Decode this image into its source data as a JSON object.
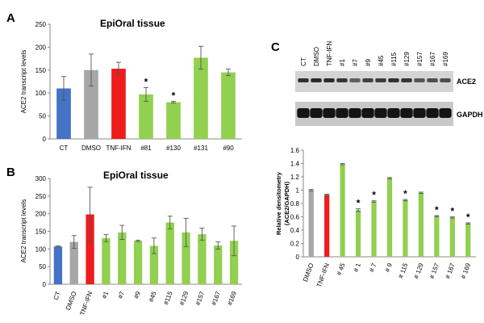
{
  "panels": {
    "a": {
      "letter": "A",
      "title": "EpiOral tissue"
    },
    "b": {
      "letter": "B",
      "title": "EpiOral tissue"
    },
    "c": {
      "letter": "C"
    }
  },
  "blot": {
    "lanes": [
      "CT",
      "DMSO",
      "TNF-IFN",
      "#1",
      "#7",
      "#9",
      "#45",
      "#115",
      "#129",
      "#157",
      "#167",
      "#169"
    ],
    "bands": [
      "ACE2",
      "GAPDH"
    ]
  },
  "colors": {
    "blue": "#4472c4",
    "gray": "#a6a6a6",
    "red": "#ee1c1c",
    "green": "#92d050"
  },
  "chart_data": [
    {
      "id": "A",
      "type": "bar",
      "title": "EpiOral tissue",
      "ylabel": "ACE2  transcript levels",
      "ylim": [
        0,
        250
      ],
      "yticks": [
        0,
        50,
        100,
        150,
        200,
        250
      ],
      "categories": [
        "CT",
        "DMSO",
        "TNF-IFN",
        "#81",
        "#130",
        "#131",
        "#90"
      ],
      "values": [
        110,
        150,
        153,
        97,
        80,
        177,
        145
      ],
      "errors": [
        26,
        35,
        14,
        15,
        2,
        25,
        7
      ],
      "colors": [
        "#4472c4",
        "#a6a6a6",
        "#ee1c1c",
        "#92d050",
        "#92d050",
        "#92d050",
        "#92d050"
      ],
      "significant": [
        false,
        false,
        false,
        true,
        true,
        false,
        false
      ],
      "significance_label": "*",
      "grid": false
    },
    {
      "id": "B",
      "type": "bar",
      "title": "EpiOral tissue",
      "ylabel": "ACE2  transcript levels",
      "ylim": [
        0,
        300
      ],
      "yticks": [
        0,
        50,
        100,
        150,
        200,
        250,
        300
      ],
      "categories": [
        "CT",
        "DMSO",
        "TNF-IFN",
        "#1",
        "#7",
        "#9",
        "#45",
        "#115",
        "#129",
        "#157",
        "#167",
        "#169"
      ],
      "values": [
        107,
        120,
        198,
        131,
        147,
        123,
        109,
        175,
        147,
        142,
        110,
        123
      ],
      "errors": [
        2,
        18,
        77,
        10,
        20,
        2,
        22,
        18,
        40,
        17,
        10,
        42
      ],
      "colors": [
        "#4472c4",
        "#a6a6a6",
        "#ee1c1c",
        "#92d050",
        "#92d050",
        "#92d050",
        "#92d050",
        "#92d050",
        "#92d050",
        "#92d050",
        "#92d050",
        "#92d050"
      ],
      "significant": [
        false,
        false,
        false,
        false,
        false,
        false,
        false,
        false,
        false,
        false,
        false,
        false
      ],
      "grid": false
    },
    {
      "id": "C",
      "type": "bar",
      "ylabel_lines": [
        "Relative densitometry",
        "(ACE2/GAPDH)"
      ],
      "ylim": [
        0,
        1.6
      ],
      "yticks": [
        "0",
        "0.2",
        "0.4",
        "0.6",
        "0.8",
        "1",
        "1.2",
        "1.4",
        "1.6"
      ],
      "categories": [
        "DMSO",
        "TNF-IFN",
        "# 45",
        "# 1",
        "# 7",
        "# 9",
        "# 115",
        "# 129",
        "# 157",
        "# 167",
        "# 169"
      ],
      "values": [
        1.0,
        0.93,
        1.39,
        0.7,
        0.83,
        1.18,
        0.85,
        0.96,
        0.61,
        0.59,
        0.5
      ],
      "errors": [
        0.01,
        0.01,
        0.01,
        0.02,
        0.01,
        0.01,
        0.01,
        0.01,
        0.01,
        0.01,
        0.01
      ],
      "colors": [
        "#a6a6a6",
        "#ee1c1c",
        "#92d050",
        "#92d050",
        "#92d050",
        "#92d050",
        "#92d050",
        "#92d050",
        "#92d050",
        "#92d050",
        "#92d050"
      ],
      "significant": [
        false,
        false,
        false,
        true,
        true,
        false,
        true,
        false,
        true,
        true,
        true
      ],
      "significance_label": "*",
      "grid": false
    }
  ]
}
